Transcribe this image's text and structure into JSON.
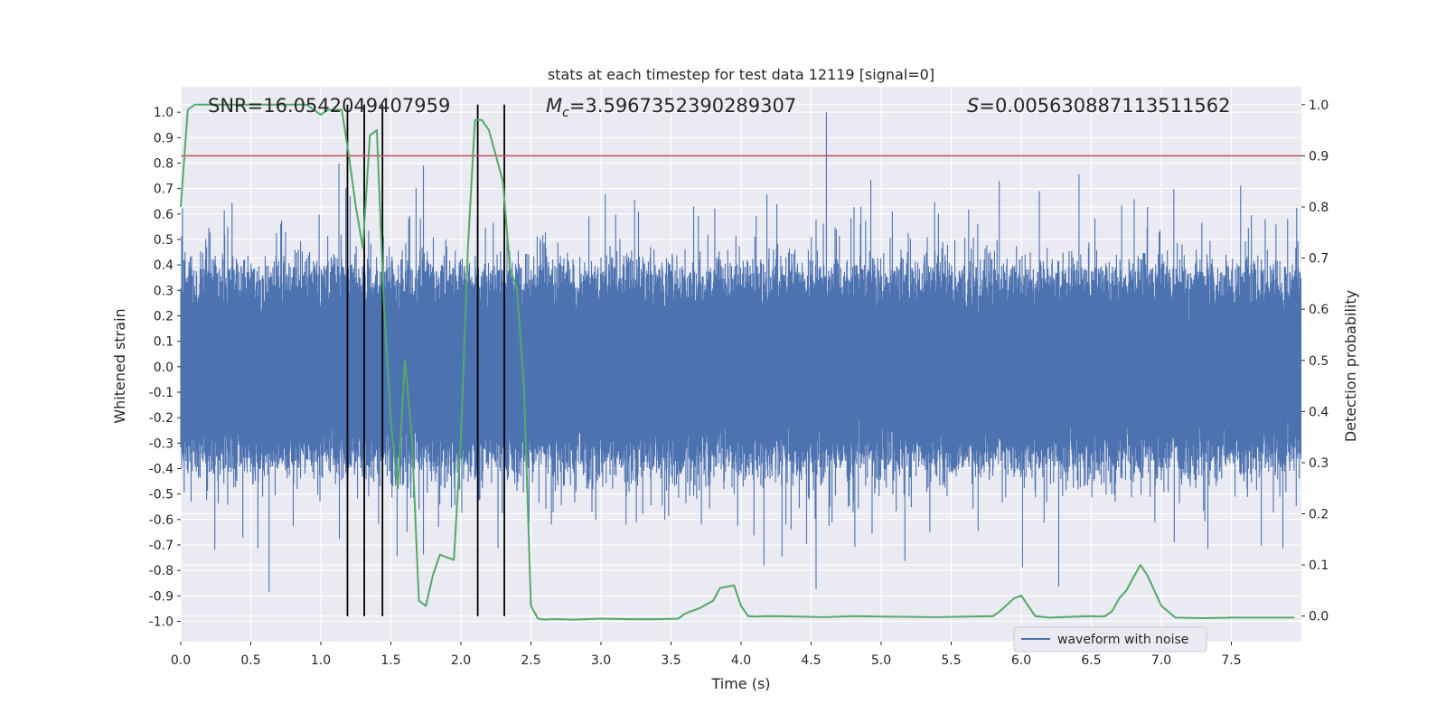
{
  "chart_data": {
    "type": "line",
    "title": "stats at each timestep for test data 12119 [signal=0]",
    "xlabel": "Time (s)",
    "ylabel_left": "Whitened strain",
    "ylabel_right": "Detection probability",
    "xlim": [
      0.0,
      8.0
    ],
    "ylim_left": [
      -1.08,
      1.1
    ],
    "ylim_right": [
      -0.05,
      1.035
    ],
    "x_ticks": [
      "0.0",
      "0.5",
      "1.0",
      "1.5",
      "2.0",
      "2.5",
      "3.0",
      "3.5",
      "4.0",
      "4.5",
      "5.0",
      "5.5",
      "6.0",
      "6.5",
      "7.0",
      "7.5"
    ],
    "y_left_ticks": [
      "-1.0",
      "-0.9",
      "-0.8",
      "-0.7",
      "-0.6",
      "-0.5",
      "-0.4",
      "-0.3",
      "-0.2",
      "-0.1",
      "0.0",
      "0.1",
      "0.2",
      "0.3",
      "0.4",
      "0.5",
      "0.6",
      "0.7",
      "0.8",
      "0.9",
      "1.0"
    ],
    "y_right_ticks": [
      "0.0",
      "0.1",
      "0.2",
      "0.3",
      "0.4",
      "0.5",
      "0.6",
      "0.7",
      "0.8",
      "0.9",
      "1.0"
    ],
    "threshold": {
      "value": 0.9,
      "axis": "right",
      "color": "#c44e52"
    },
    "detection_markers_x": [
      1.19,
      1.31,
      1.44,
      2.12,
      2.31
    ],
    "annotations": {
      "snr": "SNR=16.0542049407959",
      "mc_symbol": "M",
      "mc_sub": "c",
      "mc_value": "=3.5967352390289307",
      "s_symbol": "S",
      "s_value": "=0.005630887113511562"
    },
    "series": [
      {
        "name": "waveform with noise",
        "axis": "left",
        "color": "#4c72b0",
        "envelope": "dense noise, |strain| mostly within ~0.45, peaks up to ~1.0"
      },
      {
        "name": "detection probability",
        "axis": "right",
        "color": "#55a868",
        "x": [
          0.0,
          0.05,
          0.1,
          0.2,
          0.3,
          0.5,
          0.7,
          0.9,
          0.95,
          1.0,
          1.05,
          1.1,
          1.15,
          1.2,
          1.25,
          1.3,
          1.35,
          1.4,
          1.45,
          1.5,
          1.55,
          1.6,
          1.65,
          1.7,
          1.75,
          1.8,
          1.85,
          1.9,
          1.95,
          2.0,
          2.05,
          2.1,
          2.15,
          2.2,
          2.25,
          2.3,
          2.35,
          2.4,
          2.45,
          2.5,
          2.55,
          2.6,
          2.65,
          2.7,
          2.8,
          3.0,
          3.2,
          3.4,
          3.55,
          3.6,
          3.7,
          3.8,
          3.85,
          3.95,
          4.0,
          4.05,
          4.1,
          4.2,
          4.4,
          4.6,
          4.8,
          5.0,
          5.4,
          5.8,
          5.85,
          5.95,
          6.0,
          6.05,
          6.1,
          6.2,
          6.4,
          6.5,
          6.55,
          6.6,
          6.65,
          6.7,
          6.75,
          6.8,
          6.85,
          6.9,
          6.95,
          7.0,
          7.1,
          7.3,
          7.5,
          7.7,
          7.95
        ],
        "values": [
          0.8,
          0.99,
          1.0,
          1.0,
          1.0,
          1.0,
          1.0,
          1.0,
          0.99,
          0.98,
          0.99,
          0.99,
          0.99,
          0.9,
          0.8,
          0.72,
          0.94,
          0.95,
          0.61,
          0.38,
          0.25,
          0.5,
          0.35,
          0.03,
          0.02,
          0.08,
          0.12,
          0.115,
          0.11,
          0.35,
          0.72,
          0.97,
          0.97,
          0.95,
          0.9,
          0.85,
          0.68,
          0.64,
          0.45,
          0.02,
          -0.005,
          -0.007,
          -0.006,
          -0.006,
          -0.007,
          -0.005,
          -0.006,
          -0.006,
          -0.005,
          0.005,
          0.015,
          0.03,
          0.055,
          0.06,
          0.02,
          0.0,
          -0.001,
          0.0,
          -0.001,
          -0.002,
          0.0,
          -0.001,
          -0.002,
          0.0,
          0.01,
          0.035,
          0.04,
          0.02,
          0.0,
          -0.003,
          -0.001,
          0.0,
          -0.001,
          0.0,
          0.01,
          0.035,
          0.05,
          0.075,
          0.1,
          0.08,
          0.05,
          0.02,
          -0.003,
          -0.004,
          -0.003,
          -0.003,
          -0.003
        ]
      }
    ],
    "legend": {
      "entries": [
        "waveform with noise"
      ],
      "placement": "bottom-right"
    }
  }
}
